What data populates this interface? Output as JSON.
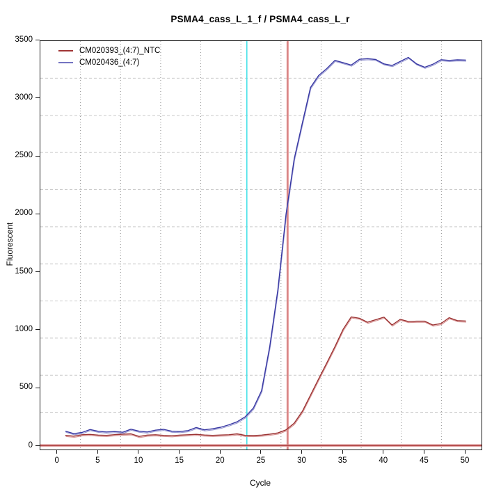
{
  "title": "PSMA4_cass_L_1_f / PSMA4_cass_L_r",
  "axes": {
    "x_label": "Cycle",
    "y_label": "Fluorescent"
  },
  "legend": {
    "position": "top-left",
    "items": [
      {
        "label": "CM020393_(4:7)_NTC",
        "color": "#a03434"
      },
      {
        "label": "CM020436_(4:7)",
        "color": "#7373c2"
      }
    ]
  },
  "chart_data": {
    "type": "line",
    "title": "PSMA4_cass_L_1_f / PSMA4_cass_L_r",
    "xlabel": "Cycle",
    "ylabel": "Fluorescent",
    "x_ticks": [
      0,
      5,
      10,
      15,
      20,
      25,
      30,
      35,
      40,
      45,
      50
    ],
    "y_ticks": [
      0,
      500,
      1000,
      1500,
      2000,
      2500,
      3000,
      3500
    ],
    "xlim": [
      -2.106,
      51.96
    ],
    "ylim": [
      -27,
      3497
    ],
    "grid": {
      "on": true,
      "nx": 11,
      "ny": 11,
      "v_style": "dotted",
      "h_style": "dashed",
      "v_color": "#8f8f8f",
      "h_color": "#c9c9c9"
    },
    "x": [
      1,
      2,
      3,
      4,
      5,
      6,
      7,
      8,
      9,
      10,
      11,
      12,
      13,
      14,
      15,
      16,
      17,
      18,
      19,
      20,
      21,
      22,
      23,
      24,
      25,
      26,
      27,
      28,
      29,
      30,
      31,
      32,
      33,
      34,
      35,
      36,
      37,
      38,
      39,
      40,
      41,
      42,
      43,
      44,
      45,
      46,
      47,
      48,
      49,
      50
    ],
    "series": [
      {
        "name": "CM020393_(4:7)_NTC",
        "color": "#9b3232",
        "raw_color": "#d69090",
        "values": [
          95,
          88,
          100,
          103,
          97,
          95,
          101,
          105,
          108,
          86,
          97,
          100,
          95,
          92,
          97,
          100,
          104,
          98,
          95,
          98,
          100,
          108,
          95,
          93,
          97,
          105,
          116,
          142,
          200,
          302,
          442,
          582,
          721,
          861,
          1010,
          1117,
          1105,
          1071,
          1093,
          1115,
          1047,
          1096,
          1077,
          1080,
          1080,
          1047,
          1060,
          1110,
          1085,
          1082
        ]
      },
      {
        "name": "CM020436_(4:7)",
        "color": "#3737a2",
        "raw_color": "#9898d2",
        "values": [
          130,
          110,
          120,
          145,
          130,
          124,
          128,
          122,
          148,
          131,
          124,
          140,
          147,
          131,
          128,
          136,
          163,
          143,
          152,
          165,
          186,
          212,
          255,
          330,
          480,
          860,
          1350,
          2000,
          2480,
          2790,
          3096,
          3200,
          3260,
          3330,
          3310,
          3290,
          3340,
          3345,
          3338,
          3300,
          3286,
          3322,
          3356,
          3300,
          3271,
          3297,
          3336,
          3330,
          3335,
          3333
        ]
      }
    ],
    "markers": {
      "vlines": [
        {
          "x": 23.2,
          "color": "#45e1e8",
          "width": 1.6,
          "name": "ct-line-cyan"
        },
        {
          "x": 28.2,
          "color": "#e8a3a3",
          "core_color": "#d47f7f",
          "width": 3.2,
          "name": "ct-line-red"
        }
      ],
      "hlines": [
        {
          "y": 8,
          "color": "#ad3f3f",
          "halo_color": "#dc9191",
          "name": "threshold-line"
        }
      ]
    }
  }
}
